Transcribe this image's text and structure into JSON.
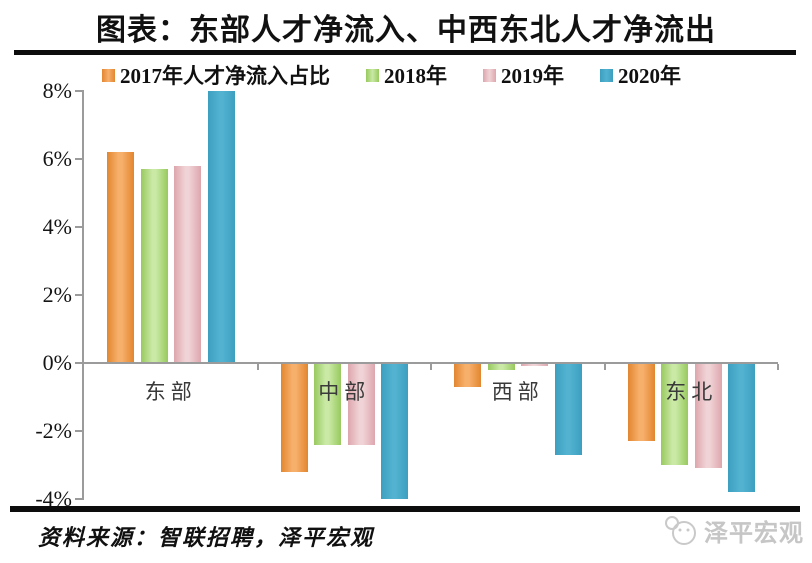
{
  "header": {
    "title": "图表：东部人才净流入、中西东北人才净流出"
  },
  "footer": {
    "source": "资料来源：智联招聘，泽平宏观",
    "watermark": "泽平宏观"
  },
  "chart_data": {
    "type": "bar",
    "title": "图表：东部人才净流入、中西东北人才净流出",
    "categories": [
      "东部",
      "中部",
      "西部",
      "东北"
    ],
    "series": [
      {
        "name": "2017年人才净流入占比",
        "color": "#e2862f",
        "color_light": "#f7b06b",
        "values": [
          6.2,
          -3.2,
          -0.7,
          -2.3
        ]
      },
      {
        "name": "2018年",
        "color": "#98c95e",
        "color_light": "#c9e9a5",
        "values": [
          5.7,
          -2.4,
          -0.2,
          -3.0
        ]
      },
      {
        "name": "2019年",
        "color": "#dda6ad",
        "color_light": "#f0d3d6",
        "values": [
          5.8,
          -2.4,
          -0.1,
          -3.1
        ]
      },
      {
        "name": "2020年",
        "color": "#3d9fc0",
        "color_light": "#52b2d0",
        "values": [
          8.0,
          -4.0,
          -2.7,
          -3.8
        ]
      }
    ],
    "ylabel": "",
    "xlabel": "",
    "ylim": [
      -4,
      8
    ],
    "ytick_step": 2,
    "ytick_labels": [
      "8%",
      "6%",
      "4%",
      "2%",
      "0%",
      "-2%",
      "-4%"
    ],
    "unit": "%",
    "grid": false,
    "legend_position": "top",
    "axis_color": "#9b9b9b"
  }
}
